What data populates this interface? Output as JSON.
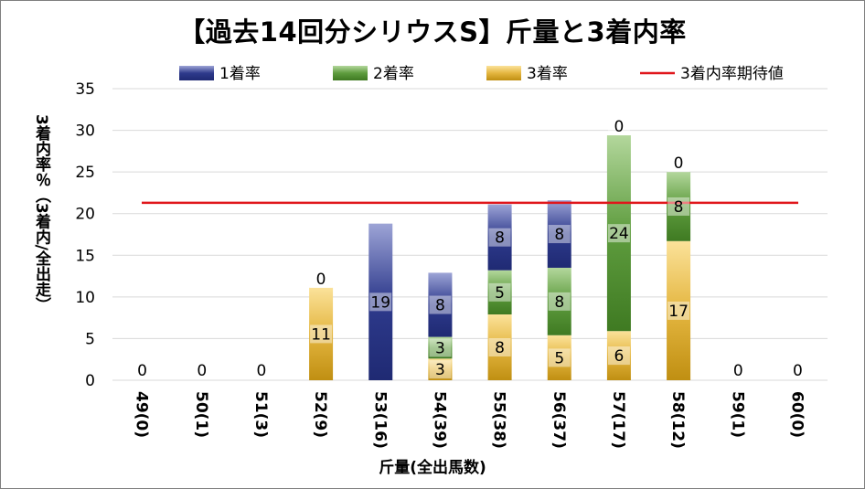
{
  "title": "【過去14回分シリウスS】斤量と3着内率",
  "chart_data": {
    "type": "bar",
    "stacked": true,
    "title": "【過去14回分シリウスS】斤量と3着内率",
    "xlabel": "斤量(全出馬数)",
    "ylabel": "3着内率％（3着内/全出走）",
    "ylim": [
      0,
      35
    ],
    "yticks": [
      0,
      5,
      10,
      15,
      20,
      25,
      30,
      35
    ],
    "grid": true,
    "legend_position": "top",
    "categories": [
      "49(0)",
      "50(1)",
      "51(3)",
      "52(9)",
      "53(16)",
      "54(39)",
      "55(38)",
      "56(37)",
      "57(17)",
      "58(12)",
      "59(1)",
      "60(0)"
    ],
    "series": [
      {
        "name": "3着率",
        "color": "#d9a520",
        "values": [
          0,
          0,
          0,
          11.1,
          0,
          2.6,
          7.9,
          5.4,
          5.9,
          16.7,
          0,
          0
        ],
        "labels": [
          "0",
          "0",
          "0",
          "11",
          "",
          "3",
          "8",
          "5",
          "6",
          "17",
          "0",
          "0"
        ]
      },
      {
        "name": "2着率",
        "color": "#4e8a2e",
        "values": [
          0,
          0,
          0,
          0,
          0,
          2.6,
          5.3,
          8.1,
          23.5,
          8.3,
          0,
          0
        ],
        "labels": [
          "",
          "",
          "",
          "",
          "",
          "3",
          "5",
          "8",
          "24",
          "8",
          "",
          ""
        ]
      },
      {
        "name": "1着率",
        "color": "#2e3a8c",
        "values": [
          0,
          0,
          0,
          0,
          18.8,
          7.7,
          7.9,
          8.1,
          0,
          0,
          0,
          0
        ],
        "labels": [
          "",
          "",
          "",
          "0",
          "19",
          "8",
          "8",
          "8",
          "0",
          "0",
          "",
          ""
        ]
      }
    ],
    "line": {
      "name": "3着内率期待値",
      "color": "#e0161b",
      "value": 21.3
    }
  }
}
